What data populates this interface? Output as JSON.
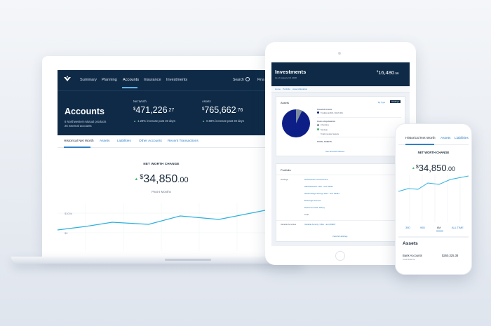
{
  "laptop": {
    "nav": {
      "items": [
        "Summary",
        "Planning",
        "Accounts",
        "Insurance",
        "Investments"
      ],
      "search": "Search",
      "overflow": "Fina"
    },
    "hero": {
      "title": "Accounts",
      "subtitle_line1": "6 Northwestern Mutual products",
      "subtitle_line2": "25 external accounts",
      "net_worth_label": "Net Worth",
      "net_worth_currency": "$",
      "net_worth_whole": "471,226",
      "net_worth_cents": ".27",
      "net_worth_delta": "1.28% increase past 30 days",
      "assets_label": "Assets",
      "assets_currency": "$",
      "assets_whole": "765,662",
      "assets_cents": ".76",
      "assets_delta": "0.68% increase past 30 days"
    },
    "tabs": [
      "Historical Net Worth",
      "Assets",
      "Liabilities",
      "Other Accounts",
      "Recent Transactions"
    ],
    "chart": {
      "label": "NET WORTH CHANGE",
      "currency": "$",
      "whole": "34,850",
      "cents": ".00",
      "period": "Past 6 Months",
      "y_ticks": [
        "$300k",
        "$0"
      ]
    }
  },
  "tablet": {
    "title": "Investments",
    "date": "As of January 18, 2018",
    "value_currency": "$",
    "value_whole": "16,480",
    "value_cents": ".56",
    "crumbs": [
      "Home",
      "Portfolio",
      "Asset Allocation"
    ],
    "assets_card": {
      "title": "Assets",
      "actions": [
        "By Type",
        "Holdings"
      ],
      "groups": [
        {
          "label": "Invested Assets",
          "rows": [
            "Traditional IRA / Roth IRA"
          ]
        },
        {
          "label": "Cash & Equivalents",
          "rows": [
            "Checking",
            "Savings",
            "Total invested assets"
          ]
        },
        {
          "label": "",
          "rows": [
            "TOTAL ASSETS"
          ]
        }
      ],
      "link": "See All Asset Classes"
    },
    "portfolio_card": {
      "title": "Portfolio",
      "sections": [
        "Holdings",
        "Variable Annuities"
      ],
      "rows": [
        "Northwestern Growth Fund",
        "WESTPHALIA / IRA - acct #4521",
        "2018 College Savings Plan - acct #3394",
        "Brokerage Account",
        "Retirement Plan 401(k)",
        "Total",
        "Variable Annuity / NML - acct #9987"
      ],
      "link": "View All Holdings"
    },
    "pie": {
      "slices": [
        {
          "name": "Invested Assets",
          "value": 0.93,
          "color": "#0d1f86"
        },
        {
          "name": "Cash",
          "value": 0.07,
          "color": "#7f8da1"
        }
      ]
    }
  },
  "phone": {
    "tabs": [
      "Historical Net Worth",
      "Assets",
      "Liabilities"
    ],
    "chart": {
      "label": "NET WORTH CHANGE",
      "currency": "$",
      "whole": "34,850",
      "cents": ".00"
    },
    "ranges": [
      "30D",
      "90D",
      "6M",
      "ALL TIME"
    ],
    "assets_title": "Assets",
    "row_label": "Bank Accounts",
    "row_sub": "Total Balance",
    "row_value": "$260,325.38"
  },
  "colors": {
    "navy": "#0e2a47",
    "accent": "#2f80c9",
    "chart_line": "#2bb0de",
    "positive": "#48b96e"
  }
}
